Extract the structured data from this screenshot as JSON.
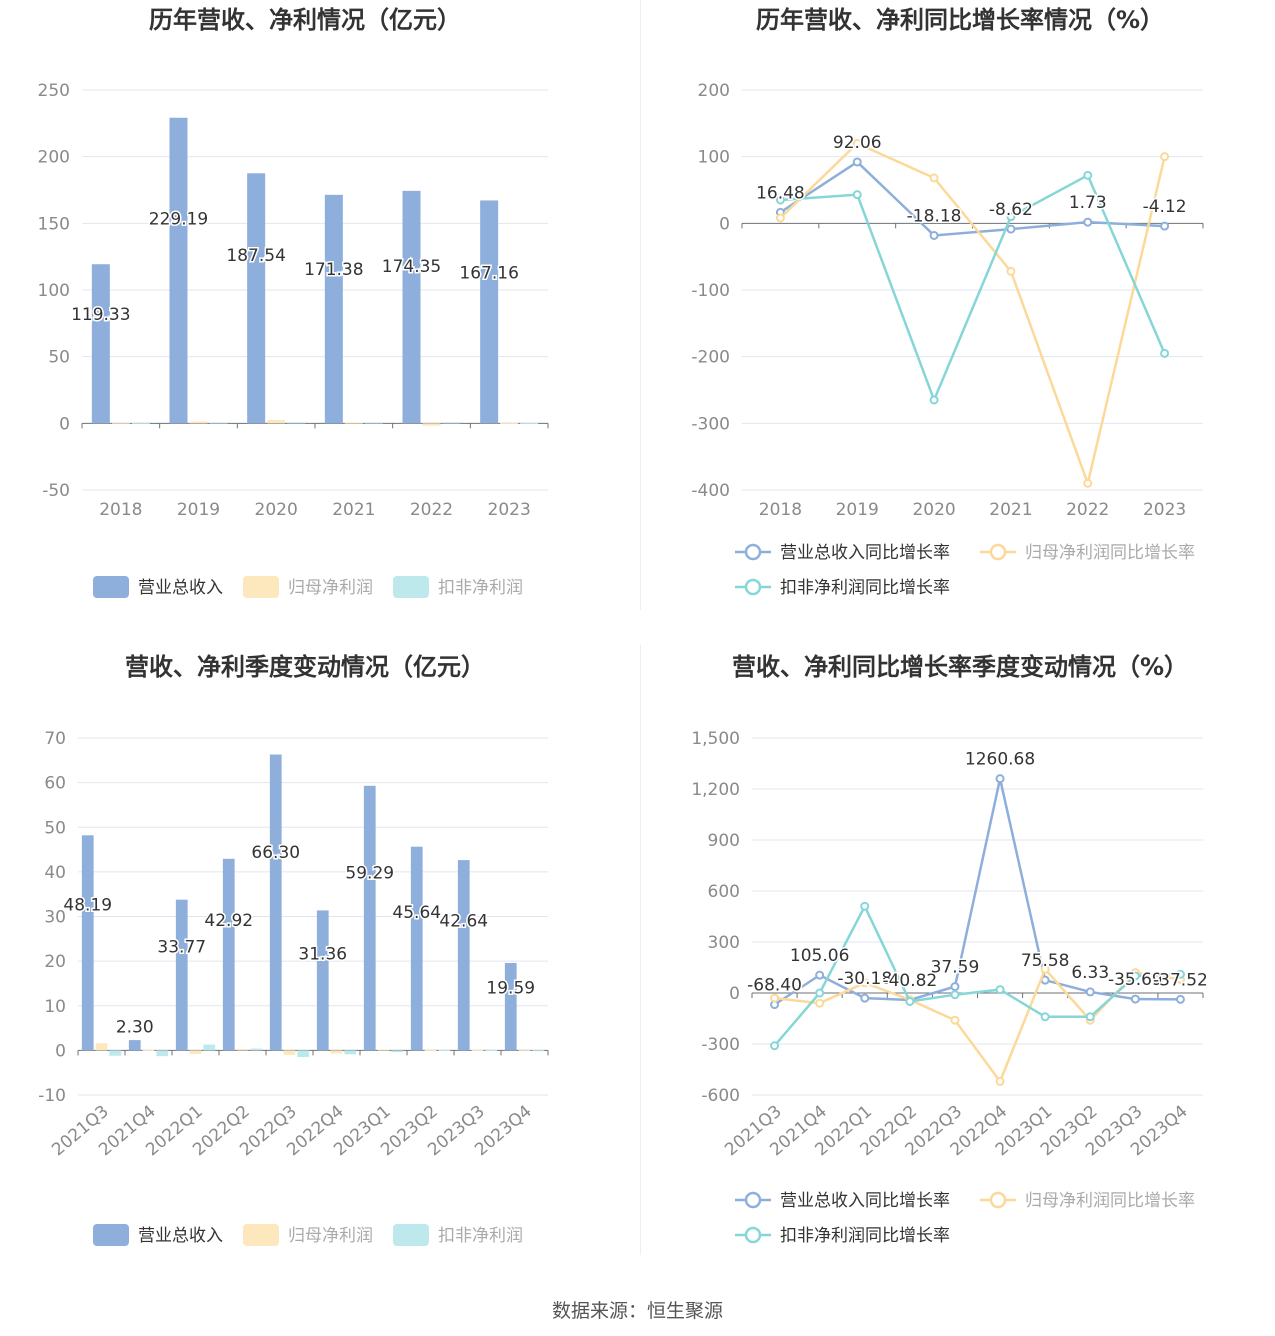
{
  "source_label": "数据来源：恒生聚源",
  "colors": {
    "revenue": "#8eaedb",
    "net_profit": "#fde7bd",
    "deducted": "#bde9ec",
    "revenue_line": "#8eaedb",
    "net_profit_line": "#fcd998",
    "deducted_line": "#86d6d8"
  },
  "chart_data": [
    {
      "id": "annual-amounts",
      "type": "bar",
      "title": "历年营收、净利情况（亿元）",
      "categories": [
        "2018",
        "2019",
        "2020",
        "2021",
        "2022",
        "2023"
      ],
      "ylim": [
        -50,
        250
      ],
      "yticks": [
        250,
        200,
        150,
        100,
        50,
        0,
        -50
      ],
      "series": [
        {
          "name": "营业总收入",
          "values": [
            119.33,
            229.19,
            187.54,
            171.38,
            174.35,
            167.16
          ],
          "labels": [
            "119.33",
            "229.19",
            "187.54",
            "171.38",
            "174.35",
            "167.16"
          ]
        },
        {
          "name": "归母净利润",
          "values": [
            0.5,
            1.4,
            2.5,
            0.6,
            -1.8,
            0.3
          ],
          "labels": []
        },
        {
          "name": "扣非净利润",
          "values": [
            0.4,
            0.7,
            0.8,
            0.7,
            0.8,
            0.2
          ],
          "labels": []
        }
      ],
      "legend": {
        "position": "bottom",
        "dimmed": [
          false,
          true,
          true
        ]
      }
    },
    {
      "id": "annual-growth",
      "type": "line",
      "title": "历年营收、净利同比增长率情况（%）",
      "categories": [
        "2018",
        "2019",
        "2020",
        "2021",
        "2022",
        "2023"
      ],
      "ylim": [
        -400,
        200
      ],
      "yticks": [
        200,
        100,
        0,
        -100,
        -200,
        -300,
        -400
      ],
      "series": [
        {
          "name": "营业总收入同比增长率",
          "values": [
            16.48,
            92.06,
            -18.18,
            -8.62,
            1.73,
            -4.12
          ],
          "labels": [
            "16.48",
            "92.06",
            "-18.18",
            "-8.62",
            "1.73",
            "-4.12"
          ]
        },
        {
          "name": "归母净利润同比增长率",
          "values": [
            8,
            120,
            68,
            -72,
            -390,
            100
          ],
          "labels": []
        },
        {
          "name": "扣非净利润同比增长率",
          "values": [
            35,
            43,
            -265,
            10,
            72,
            -195
          ],
          "labels": []
        }
      ],
      "legend": {
        "position": "bottom",
        "dimmed": [
          false,
          true,
          false
        ]
      }
    },
    {
      "id": "quarterly-amounts",
      "type": "bar",
      "title": "营收、净利季度变动情况（亿元）",
      "categories": [
        "2021Q3",
        "2021Q4",
        "2022Q1",
        "2022Q2",
        "2022Q3",
        "2022Q4",
        "2023Q1",
        "2023Q2",
        "2023Q3",
        "2023Q4"
      ],
      "ylim": [
        -10,
        70
      ],
      "yticks": [
        70,
        60,
        50,
        40,
        30,
        20,
        10,
        0,
        -10
      ],
      "series": [
        {
          "name": "营业总收入",
          "values": [
            48.19,
            2.3,
            33.77,
            42.92,
            66.3,
            31.36,
            59.29,
            45.64,
            42.64,
            19.59
          ],
          "labels": [
            "48.19",
            "2.30",
            "33.77",
            "42.92",
            "66.30",
            "31.36",
            "59.29",
            "45.64",
            "42.64",
            "19.59"
          ]
        },
        {
          "name": "归母净利润",
          "values": [
            1.6,
            0.1,
            -0.8,
            0.3,
            -1.0,
            -0.7,
            0.2,
            0.1,
            0.1,
            0.05
          ],
          "labels": []
        },
        {
          "name": "扣非净利润",
          "values": [
            -1.2,
            -1.3,
            1.3,
            0.4,
            -1.5,
            -0.9,
            -0.4,
            0.1,
            0.1,
            0.05
          ],
          "labels": []
        }
      ],
      "legend": {
        "position": "bottom",
        "dimmed": [
          false,
          true,
          true
        ]
      }
    },
    {
      "id": "quarterly-growth",
      "type": "line",
      "title": "营收、净利同比增长率季度变动情况（%）",
      "categories": [
        "2021Q3",
        "2021Q4",
        "2022Q1",
        "2022Q2",
        "2022Q3",
        "2022Q4",
        "2023Q1",
        "2023Q2",
        "2023Q3",
        "2023Q4"
      ],
      "ylim": [
        -600,
        1500
      ],
      "yticks": [
        1500,
        1200,
        900,
        600,
        300,
        0,
        -300,
        -600
      ],
      "ytick_labels": [
        "1,500",
        "1,200",
        "900",
        "600",
        "300",
        "0",
        "-300",
        "-600"
      ],
      "series": [
        {
          "name": "营业总收入同比增长率",
          "values": [
            -68.4,
            105.06,
            -30.18,
            -40.82,
            37.59,
            1260.68,
            75.58,
            6.33,
            -35.69,
            -37.52
          ],
          "labels": [
            "-68.40",
            "105.06",
            "-30.18",
            "-40.82",
            "37.59",
            "1260.68",
            "75.58",
            "6.33",
            "-35.69",
            "-37.52"
          ]
        },
        {
          "name": "归母净利润同比增长率",
          "values": [
            -30,
            -60,
            60,
            -40,
            -160,
            -520,
            140,
            -160,
            120,
            80
          ],
          "labels": []
        },
        {
          "name": "扣非净利润同比增长率",
          "values": [
            -310,
            0,
            510,
            -50,
            -10,
            20,
            -140,
            -140,
            100,
            110
          ],
          "labels": []
        }
      ],
      "legend": {
        "position": "bottom",
        "dimmed": [
          false,
          true,
          false
        ]
      }
    }
  ]
}
